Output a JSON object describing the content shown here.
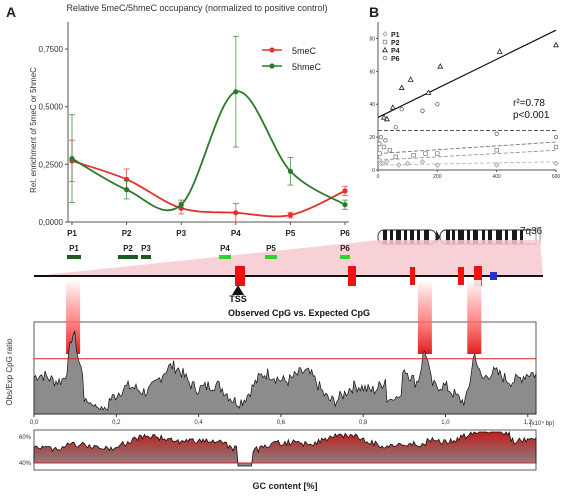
{
  "panels": {
    "a_label": "A",
    "b_label": "B"
  },
  "colors": {
    "mC": "#e53030",
    "hmC": "#2a7a2a",
    "gene_red": "#ee1111",
    "gene_blue": "#2233cc",
    "pink": "#f7c9cf",
    "probe_dark": "#1d5a1d",
    "probe_light": "#2fd12f",
    "gray_fill": "#8c8c8c"
  },
  "chart_data": [
    {
      "type": "line",
      "title": "Relative 5meC/5hmeC occupancy (normalized to positive control)",
      "ylabel": "Rel. enrichment of 5meC or 5hmeC",
      "categories": [
        "P1",
        "P2",
        "P3",
        "P4",
        "P5",
        "P6"
      ],
      "yticks": [
        "0,0000",
        "0,2500",
        "0,5000",
        "0,7500"
      ],
      "ylim": [
        0,
        0.85
      ],
      "series": [
        {
          "name": "5meC",
          "values": [
            0.265,
            0.185,
            0.06,
            0.04,
            0.03,
            0.135
          ],
          "err": [
            0.09,
            0.045,
            0.025,
            0.04,
            0.012,
            0.02
          ]
        },
        {
          "name": "5hmeC",
          "values": [
            0.275,
            0.14,
            0.075,
            0.565,
            0.22,
            0.075
          ],
          "err": [
            0.19,
            0.04,
            0.02,
            0.24,
            0.06,
            0.02
          ]
        }
      ],
      "legend_position": "top-right"
    },
    {
      "type": "scatter",
      "xticks": [
        "0",
        "200",
        "400",
        "600"
      ],
      "yticks": [
        "0",
        "20",
        "40",
        "60",
        "80"
      ],
      "xlim": [
        0,
        600
      ],
      "ylim": [
        0,
        90
      ],
      "series": [
        {
          "name": "P1",
          "marker": "diamond",
          "points": [
            [
              5,
              6
            ],
            [
              15,
              4
            ],
            [
              30,
              5
            ],
            [
              70,
              3
            ],
            [
              100,
              4
            ],
            [
              150,
              5
            ],
            [
              200,
              3
            ],
            [
              400,
              3
            ],
            [
              600,
              4
            ]
          ]
        },
        {
          "name": "P2",
          "marker": "square",
          "points": [
            [
              5,
              10
            ],
            [
              20,
              14
            ],
            [
              40,
              12
            ],
            [
              60,
              8
            ],
            [
              120,
              9
            ],
            [
              160,
              10
            ],
            [
              200,
              10
            ],
            [
              400,
              12
            ],
            [
              600,
              14
            ]
          ]
        },
        {
          "name": "P4",
          "marker": "triangle",
          "points": [
            [
              20,
              32
            ],
            [
              30,
              31
            ],
            [
              50,
              38
            ],
            [
              80,
              50
            ],
            [
              110,
              55
            ],
            [
              170,
              47
            ],
            [
              210,
              63
            ],
            [
              410,
              72
            ],
            [
              600,
              76
            ]
          ]
        },
        {
          "name": "P6",
          "marker": "circle",
          "points": [
            [
              5,
              16
            ],
            [
              10,
              20
            ],
            [
              25,
              18
            ],
            [
              60,
              26
            ],
            [
              80,
              37
            ],
            [
              150,
              36
            ],
            [
              200,
              40
            ],
            [
              400,
              22
            ],
            [
              600,
              20
            ]
          ]
        }
      ],
      "fit_solid": [
        [
          0,
          32
        ],
        [
          600,
          85
        ]
      ],
      "fit_dashed": [
        [
          [
            0,
            24
          ],
          [
            600,
            24
          ]
        ],
        [
          [
            0,
            10
          ],
          [
            600,
            17
          ]
        ],
        [
          [
            0,
            6
          ],
          [
            600,
            12
          ]
        ],
        [
          [
            0,
            3
          ],
          [
            600,
            5
          ]
        ]
      ],
      "annotation": [
        "r²=0.78",
        "p<0.001"
      ]
    },
    {
      "type": "area",
      "ylabel": "Obs/Exp CpG ratio",
      "xticks": [
        "0,0",
        "0,2",
        "0,4",
        "0,6",
        "0,8",
        "1,0",
        "1,2"
      ],
      "xunit": "[x10⁴ bp]",
      "xlim": [
        0,
        1.22
      ],
      "threshold": 0.6,
      "peaks": [
        0.095,
        0.95,
        1.07
      ]
    },
    {
      "type": "area",
      "xlabel": "GC content [%]",
      "yticks": [
        "40%",
        "60%"
      ],
      "threshold": "40%"
    }
  ],
  "gene_map": {
    "band": "7q36",
    "tss_label": "TSS",
    "subtitle": "Observed CpG vs. Expected CpG",
    "probes": [
      "P1",
      "P2",
      "P3",
      "P4",
      "P5",
      "P6"
    ]
  }
}
